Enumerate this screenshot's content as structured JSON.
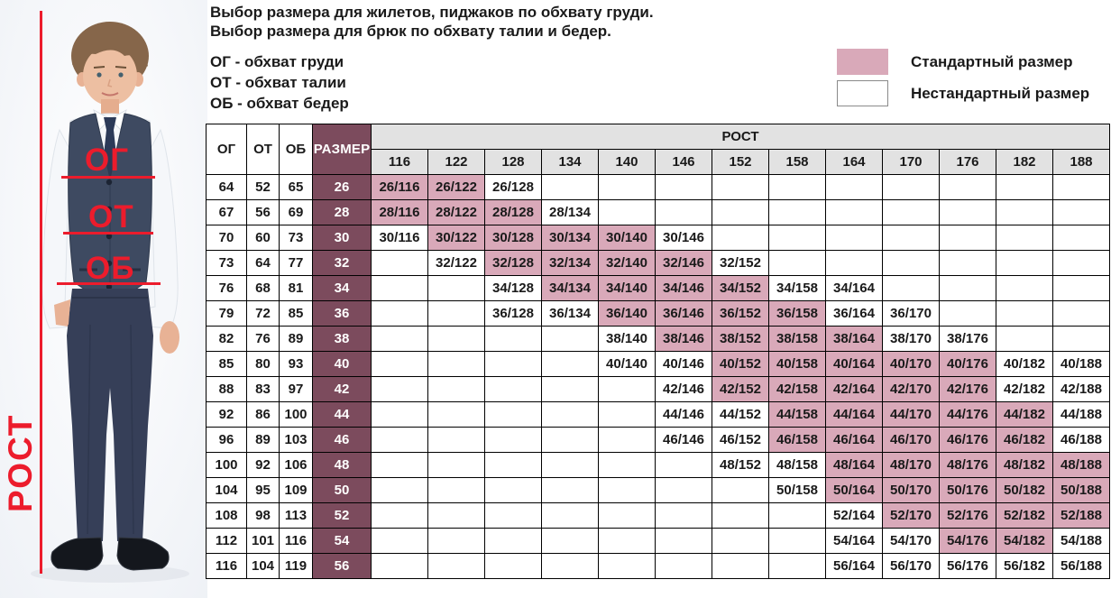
{
  "intro": {
    "title_line1": "Выбор размера для жилетов, пиджаков по обхвату груди.",
    "title_line2": "Выбор размера для брюк по обхвату талии и бедер.",
    "abbr_line1": "ОГ - обхват груди",
    "abbr_line2": "ОТ - обхват талии",
    "abbr_line3": "ОБ - обхват бедер"
  },
  "legend": {
    "standard_label": "Стандартный размер",
    "nonstandard_label": "Нестандартный размер"
  },
  "figure": {
    "rost_label": "РОСТ",
    "og_label": "ОГ",
    "ot_label": "ОТ",
    "ob_label": "ОБ"
  },
  "colors": {
    "standard_fill": "#d9a9b9",
    "size_column_fill": "#7c4b5d",
    "header_fill": "#e2e2e2",
    "annotation_red": "#ec1c2c"
  },
  "table": {
    "col_og": "ОГ",
    "col_ot": "ОТ",
    "col_ob": "ОБ",
    "col_size": "РАЗМЕР",
    "col_rost": "РОСТ",
    "heights": [
      "116",
      "122",
      "128",
      "134",
      "140",
      "146",
      "152",
      "158",
      "164",
      "170",
      "176",
      "182",
      "188"
    ],
    "rows": [
      {
        "og": "64",
        "ot": "52",
        "ob": "65",
        "size": "26",
        "cells": [
          {
            "label": "26/116",
            "std": true
          },
          {
            "label": "26/122",
            "std": true
          },
          {
            "label": "26/128",
            "std": false
          },
          null,
          null,
          null,
          null,
          null,
          null,
          null,
          null,
          null,
          null
        ]
      },
      {
        "og": "67",
        "ot": "56",
        "ob": "69",
        "size": "28",
        "cells": [
          {
            "label": "28/116",
            "std": true
          },
          {
            "label": "28/122",
            "std": true
          },
          {
            "label": "28/128",
            "std": true
          },
          {
            "label": "28/134",
            "std": false
          },
          null,
          null,
          null,
          null,
          null,
          null,
          null,
          null,
          null
        ]
      },
      {
        "og": "70",
        "ot": "60",
        "ob": "73",
        "size": "30",
        "cells": [
          {
            "label": "30/116",
            "std": false
          },
          {
            "label": "30/122",
            "std": true
          },
          {
            "label": "30/128",
            "std": true
          },
          {
            "label": "30/134",
            "std": true
          },
          {
            "label": "30/140",
            "std": true
          },
          {
            "label": "30/146",
            "std": false
          },
          null,
          null,
          null,
          null,
          null,
          null,
          null
        ]
      },
      {
        "og": "73",
        "ot": "64",
        "ob": "77",
        "size": "32",
        "cells": [
          null,
          {
            "label": "32/122",
            "std": false
          },
          {
            "label": "32/128",
            "std": true
          },
          {
            "label": "32/134",
            "std": true
          },
          {
            "label": "32/140",
            "std": true
          },
          {
            "label": "32/146",
            "std": true
          },
          {
            "label": "32/152",
            "std": false
          },
          null,
          null,
          null,
          null,
          null,
          null
        ]
      },
      {
        "og": "76",
        "ot": "68",
        "ob": "81",
        "size": "34",
        "cells": [
          null,
          null,
          {
            "label": "34/128",
            "std": false
          },
          {
            "label": "34/134",
            "std": true
          },
          {
            "label": "34/140",
            "std": true
          },
          {
            "label": "34/146",
            "std": true
          },
          {
            "label": "34/152",
            "std": true
          },
          {
            "label": "34/158",
            "std": false
          },
          {
            "label": "34/164",
            "std": false
          },
          null,
          null,
          null,
          null
        ]
      },
      {
        "og": "79",
        "ot": "72",
        "ob": "85",
        "size": "36",
        "cells": [
          null,
          null,
          {
            "label": "36/128",
            "std": false
          },
          {
            "label": "36/134",
            "std": false
          },
          {
            "label": "36/140",
            "std": true
          },
          {
            "label": "36/146",
            "std": true
          },
          {
            "label": "36/152",
            "std": true
          },
          {
            "label": "36/158",
            "std": true
          },
          {
            "label": "36/164",
            "std": false
          },
          {
            "label": "36/170",
            "std": false
          },
          null,
          null,
          null
        ]
      },
      {
        "og": "82",
        "ot": "76",
        "ob": "89",
        "size": "38",
        "cells": [
          null,
          null,
          null,
          null,
          {
            "label": "38/140",
            "std": false
          },
          {
            "label": "38/146",
            "std": true
          },
          {
            "label": "38/152",
            "std": true
          },
          {
            "label": "38/158",
            "std": true
          },
          {
            "label": "38/164",
            "std": true
          },
          {
            "label": "38/170",
            "std": false
          },
          {
            "label": "38/176",
            "std": false
          },
          null,
          null
        ]
      },
      {
        "og": "85",
        "ot": "80",
        "ob": "93",
        "size": "40",
        "cells": [
          null,
          null,
          null,
          null,
          {
            "label": "40/140",
            "std": false
          },
          {
            "label": "40/146",
            "std": false
          },
          {
            "label": "40/152",
            "std": true
          },
          {
            "label": "40/158",
            "std": true
          },
          {
            "label": "40/164",
            "std": true
          },
          {
            "label": "40/170",
            "std": true
          },
          {
            "label": "40/176",
            "std": true
          },
          {
            "label": "40/182",
            "std": false
          },
          {
            "label": "40/188",
            "std": false
          }
        ]
      },
      {
        "og": "88",
        "ot": "83",
        "ob": "97",
        "size": "42",
        "cells": [
          null,
          null,
          null,
          null,
          null,
          {
            "label": "42/146",
            "std": false
          },
          {
            "label": "42/152",
            "std": true
          },
          {
            "label": "42/158",
            "std": true
          },
          {
            "label": "42/164",
            "std": true
          },
          {
            "label": "42/170",
            "std": true
          },
          {
            "label": "42/176",
            "std": true
          },
          {
            "label": "42/182",
            "std": false
          },
          {
            "label": "42/188",
            "std": false
          }
        ]
      },
      {
        "og": "92",
        "ot": "86",
        "ob": "100",
        "size": "44",
        "cells": [
          null,
          null,
          null,
          null,
          null,
          {
            "label": "44/146",
            "std": false
          },
          {
            "label": "44/152",
            "std": false
          },
          {
            "label": "44/158",
            "std": true
          },
          {
            "label": "44/164",
            "std": true
          },
          {
            "label": "44/170",
            "std": true
          },
          {
            "label": "44/176",
            "std": true
          },
          {
            "label": "44/182",
            "std": true
          },
          {
            "label": "44/188",
            "std": false
          }
        ]
      },
      {
        "og": "96",
        "ot": "89",
        "ob": "103",
        "size": "46",
        "cells": [
          null,
          null,
          null,
          null,
          null,
          {
            "label": "46/146",
            "std": false
          },
          {
            "label": "46/152",
            "std": false
          },
          {
            "label": "46/158",
            "std": true
          },
          {
            "label": "46/164",
            "std": true
          },
          {
            "label": "46/170",
            "std": true
          },
          {
            "label": "46/176",
            "std": true
          },
          {
            "label": "46/182",
            "std": true
          },
          {
            "label": "46/188",
            "std": false
          }
        ]
      },
      {
        "og": "100",
        "ot": "92",
        "ob": "106",
        "size": "48",
        "cells": [
          null,
          null,
          null,
          null,
          null,
          null,
          {
            "label": "48/152",
            "std": false
          },
          {
            "label": "48/158",
            "std": false
          },
          {
            "label": "48/164",
            "std": true
          },
          {
            "label": "48/170",
            "std": true
          },
          {
            "label": "48/176",
            "std": true
          },
          {
            "label": "48/182",
            "std": true
          },
          {
            "label": "48/188",
            "std": true
          }
        ]
      },
      {
        "og": "104",
        "ot": "95",
        "ob": "109",
        "size": "50",
        "cells": [
          null,
          null,
          null,
          null,
          null,
          null,
          null,
          {
            "label": "50/158",
            "std": false
          },
          {
            "label": "50/164",
            "std": true
          },
          {
            "label": "50/170",
            "std": true
          },
          {
            "label": "50/176",
            "std": true
          },
          {
            "label": "50/182",
            "std": true
          },
          {
            "label": "50/188",
            "std": true
          }
        ]
      },
      {
        "og": "108",
        "ot": "98",
        "ob": "113",
        "size": "52",
        "cells": [
          null,
          null,
          null,
          null,
          null,
          null,
          null,
          null,
          {
            "label": "52/164",
            "std": false
          },
          {
            "label": "52/170",
            "std": true
          },
          {
            "label": "52/176",
            "std": true
          },
          {
            "label": "52/182",
            "std": true
          },
          {
            "label": "52/188",
            "std": true
          }
        ]
      },
      {
        "og": "112",
        "ot": "101",
        "ob": "116",
        "size": "54",
        "cells": [
          null,
          null,
          null,
          null,
          null,
          null,
          null,
          null,
          {
            "label": "54/164",
            "std": false
          },
          {
            "label": "54/170",
            "std": false
          },
          {
            "label": "54/176",
            "std": true
          },
          {
            "label": "54/182",
            "std": true
          },
          {
            "label": "54/188",
            "std": false
          }
        ]
      },
      {
        "og": "116",
        "ot": "104",
        "ob": "119",
        "size": "56",
        "cells": [
          null,
          null,
          null,
          null,
          null,
          null,
          null,
          null,
          {
            "label": "56/164",
            "std": false
          },
          {
            "label": "56/170",
            "std": false
          },
          {
            "label": "56/176",
            "std": false
          },
          {
            "label": "56/182",
            "std": false
          },
          {
            "label": "56/188",
            "std": false
          }
        ]
      }
    ]
  }
}
